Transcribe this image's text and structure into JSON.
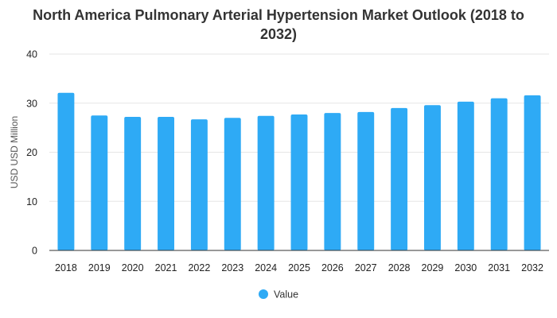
{
  "chart_data": {
    "type": "bar",
    "title": "North America Pulmonary Arterial Hypertension Market Outlook (2018 to 2032)",
    "ylabel": "USD USD Million",
    "xlabel": "",
    "categories": [
      "2018",
      "2019",
      "2020",
      "2021",
      "2022",
      "2023",
      "2024",
      "2025",
      "2026",
      "2027",
      "2028",
      "2029",
      "2030",
      "2031",
      "2032"
    ],
    "series": [
      {
        "name": "Value",
        "values": [
          32.1,
          27.5,
          27.2,
          27.2,
          26.7,
          27.0,
          27.4,
          27.7,
          28.0,
          28.2,
          29.0,
          29.6,
          30.3,
          31.0,
          31.6
        ]
      }
    ],
    "ylim": [
      0,
      40
    ],
    "yticks": [
      "0",
      "10",
      "20",
      "30",
      "40"
    ],
    "grid": true,
    "legend": "bottom-center",
    "bar_color": "#2eaaf5",
    "grid_color": "#e6e6e6",
    "axis_color": "#333333"
  }
}
